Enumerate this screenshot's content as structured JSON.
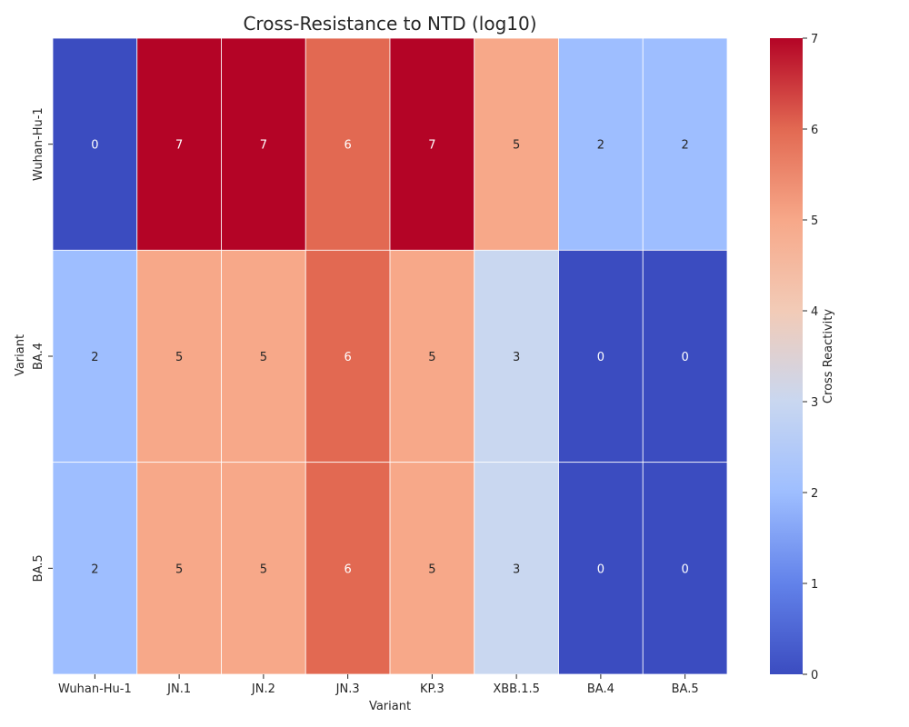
{
  "chart_data": {
    "type": "heatmap",
    "title": "Cross-Resistance to NTD (log10)",
    "xlabel": "Variant",
    "ylabel": "Variant",
    "x_categories": [
      "Wuhan-Hu-1",
      "JN.1",
      "JN.2",
      "JN.3",
      "KP.3",
      "XBB.1.5",
      "BA.4",
      "BA.5"
    ],
    "y_categories": [
      "Wuhan-Hu-1",
      "BA.4",
      "BA.5"
    ],
    "values": [
      [
        0,
        7,
        7,
        6,
        7,
        5,
        2,
        2
      ],
      [
        2,
        5,
        5,
        6,
        5,
        3,
        0,
        0
      ],
      [
        2,
        5,
        5,
        6,
        5,
        3,
        0,
        0
      ]
    ],
    "colorbar": {
      "label": "Cross Reactivity",
      "range": [
        0,
        7
      ],
      "ticks": [
        0,
        1,
        2,
        3,
        4,
        5,
        6,
        7
      ],
      "colormap": "coolwarm"
    },
    "annotations": true,
    "grid_lines": true
  }
}
